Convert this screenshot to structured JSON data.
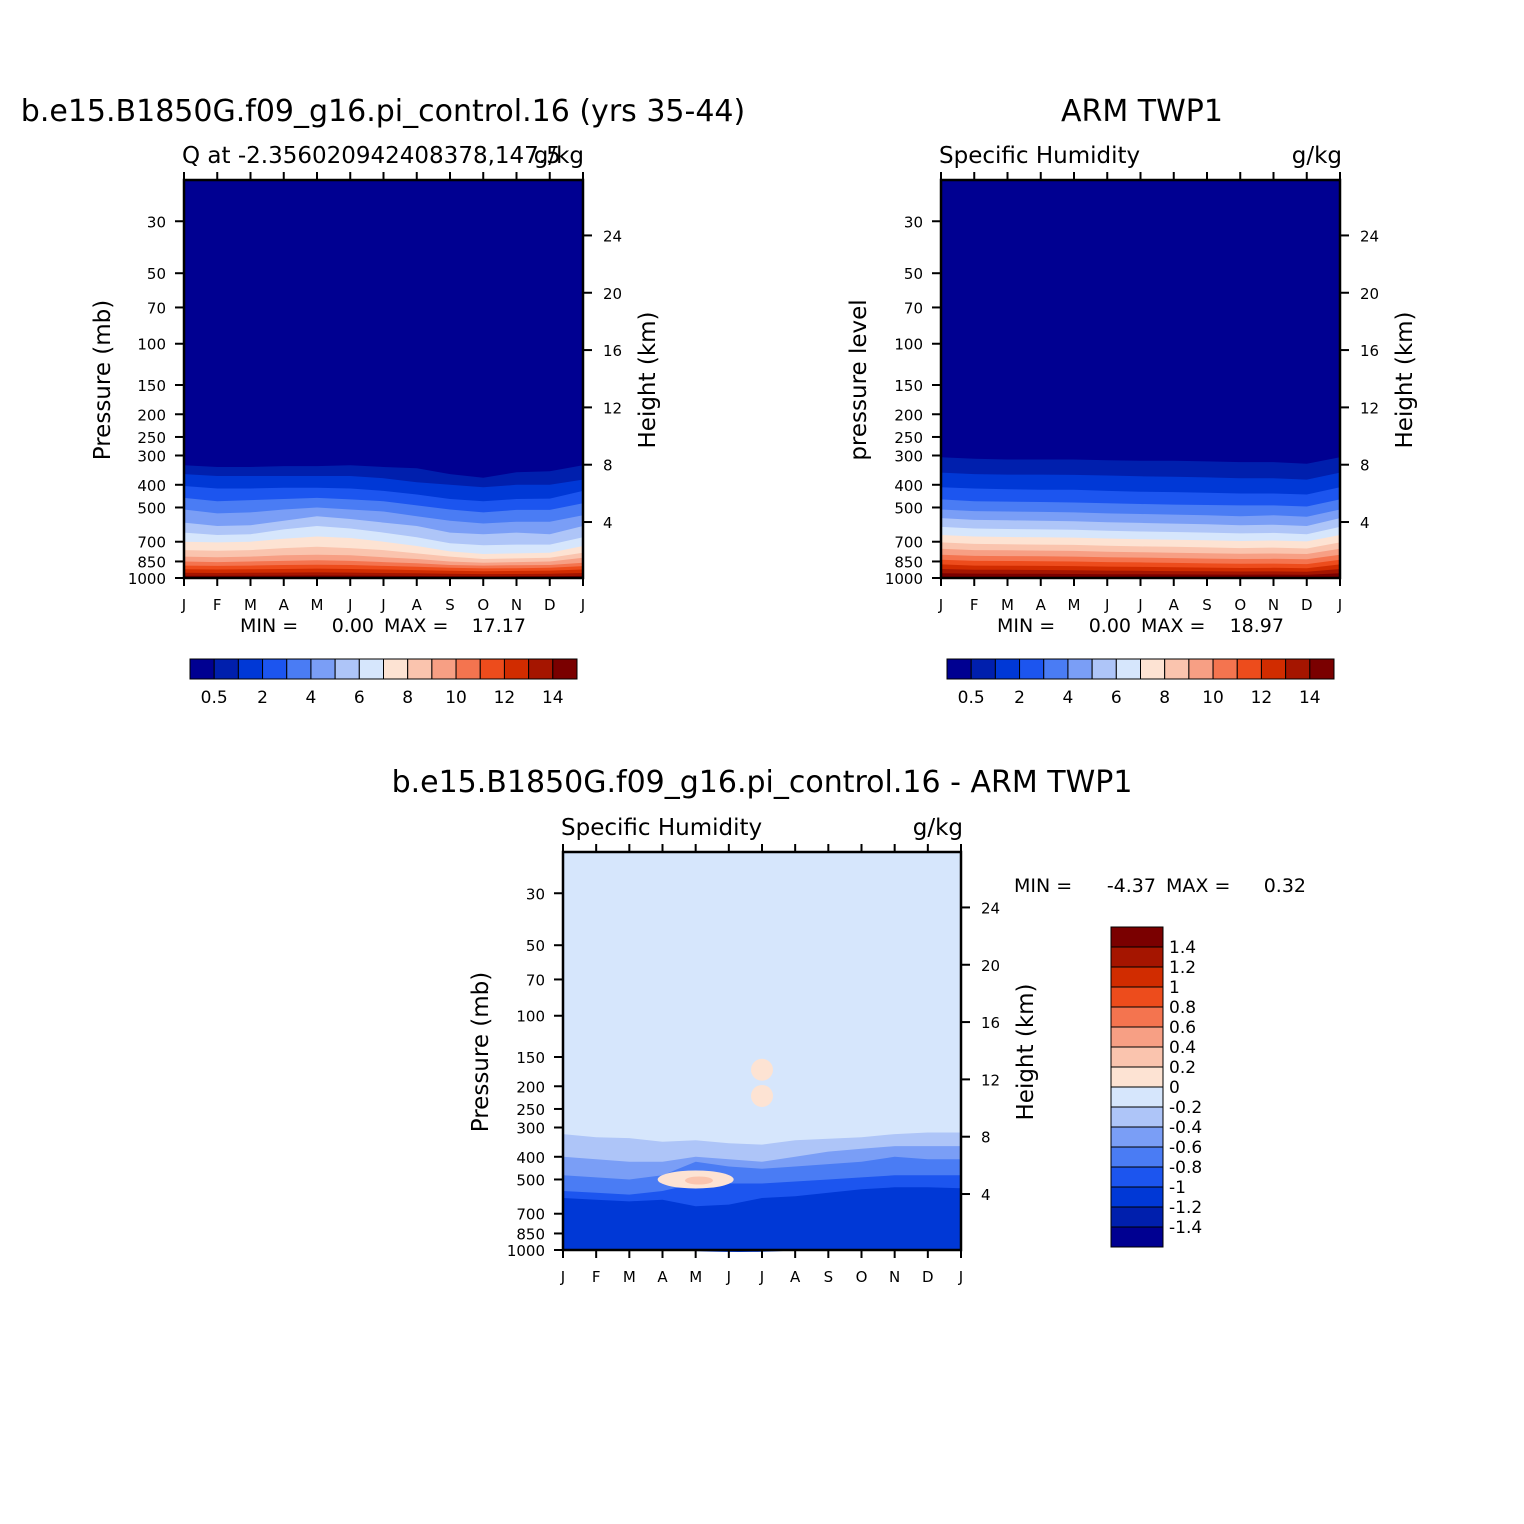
{
  "palette": {
    "abs": [
      "#000091",
      "#001fad",
      "#0038d6",
      "#1c55ef",
      "#4a7cf4",
      "#7a9ef6",
      "#aec5f8",
      "#d6e6fc",
      "#fde3d3",
      "#fac4ae",
      "#f79f84",
      "#f4744f",
      "#ed4c1c",
      "#d12c00",
      "#a51500",
      "#7a0000"
    ],
    "diff": [
      "#000091",
      "#001fad",
      "#0038d6",
      "#1c55ef",
      "#4a7cf4",
      "#7a9ef6",
      "#aec5f8",
      "#d6e6fc",
      "#fde3d3",
      "#fac4ae",
      "#f79f84",
      "#f4744f",
      "#ed4c1c",
      "#d12c00",
      "#a51500",
      "#7a0000"
    ]
  },
  "chart_data": [
    {
      "type": "heatmap",
      "id": "model",
      "title": "b.e15.B1850G.f09_g16.pi_control.16 (yrs 35-44)",
      "left_subtitle": "Q  at -2.356020942408378,147.5",
      "right_subtitle": "g/kg",
      "ylabel": "Pressure (mb)",
      "y2label": "Height (km)",
      "x_ticks": [
        "J",
        "F",
        "M",
        "A",
        "M",
        "J",
        "J",
        "A",
        "S",
        "O",
        "N",
        "D",
        "J"
      ],
      "y_ticks": [
        30,
        50,
        70,
        100,
        150,
        200,
        250,
        300,
        400,
        500,
        700,
        850,
        1000
      ],
      "y2_ticks": [
        24,
        20,
        16,
        12,
        8,
        4
      ],
      "ylim": [
        1000,
        20
      ],
      "min_label": "MIN =",
      "min_value": "0.00",
      "max_label": "MAX =",
      "max_value": "17.17",
      "colorbar_labels": [
        "0.5",
        "2",
        "4",
        "6",
        "8",
        "10",
        "12",
        "14"
      ],
      "iso_pressure": [
        [
          330,
          336,
          336,
          333,
          333,
          330,
          336,
          340,
          360,
          373,
          354,
          350,
          330
        ],
        [
          360,
          367,
          367,
          367,
          367,
          367,
          375,
          390,
          400,
          410,
          400,
          400,
          380
        ],
        [
          405,
          415,
          415,
          412,
          412,
          415,
          425,
          440,
          460,
          470,
          460,
          458,
          425
        ],
        [
          455,
          470,
          465,
          460,
          455,
          462,
          470,
          490,
          510,
          525,
          512,
          512,
          480
        ],
        [
          510,
          530,
          525,
          510,
          500,
          510,
          520,
          545,
          570,
          585,
          575,
          575,
          540
        ],
        [
          580,
          600,
          595,
          570,
          545,
          560,
          580,
          600,
          640,
          650,
          640,
          650,
          600
        ],
        [
          640,
          655,
          650,
          620,
          600,
          615,
          640,
          670,
          710,
          725,
          720,
          720,
          670
        ],
        [
          700,
          705,
          700,
          680,
          665,
          675,
          700,
          730,
          770,
          790,
          785,
          780,
          730
        ],
        [
          760,
          765,
          760,
          745,
          735,
          745,
          760,
          785,
          810,
          830,
          825,
          820,
          780
        ],
        [
          810,
          815,
          810,
          800,
          795,
          800,
          815,
          830,
          850,
          860,
          855,
          850,
          820
        ],
        [
          850,
          855,
          850,
          845,
          840,
          845,
          855,
          865,
          880,
          885,
          882,
          880,
          860
        ],
        [
          885,
          888,
          885,
          880,
          878,
          880,
          888,
          895,
          905,
          910,
          908,
          905,
          890
        ],
        [
          918,
          920,
          918,
          915,
          912,
          915,
          920,
          925,
          932,
          935,
          933,
          930,
          920
        ],
        [
          950,
          952,
          950,
          948,
          946,
          948,
          952,
          955,
          960,
          962,
          961,
          960,
          952
        ],
        [
          978,
          979,
          978,
          977,
          976,
          977,
          979,
          981,
          983,
          984,
          983,
          983,
          980
        ]
      ]
    },
    {
      "type": "heatmap",
      "id": "obs",
      "title": "ARM TWP1",
      "left_subtitle": "Specific Humidity",
      "right_subtitle": "g/kg",
      "ylabel": "pressure level",
      "y2label": "Height (km)",
      "x_ticks": [
        "J",
        "F",
        "M",
        "A",
        "M",
        "J",
        "J",
        "A",
        "S",
        "O",
        "N",
        "D",
        "J"
      ],
      "y_ticks": [
        30,
        50,
        70,
        100,
        150,
        200,
        250,
        300,
        400,
        500,
        700,
        850,
        1000
      ],
      "y2_ticks": [
        24,
        20,
        16,
        12,
        8,
        4
      ],
      "ylim": [
        1000,
        20
      ],
      "min_label": "MIN =",
      "min_value": "0.00",
      "max_label": "MAX =",
      "max_value": "18.97",
      "colorbar_labels": [
        "0.5",
        "2",
        "4",
        "6",
        "8",
        "10",
        "12",
        "14"
      ],
      "iso_pressure": [
        [
          305,
          310,
          312,
          312,
          312,
          314,
          316,
          316,
          318,
          320,
          320,
          325,
          305
        ],
        [
          355,
          360,
          362,
          362,
          363,
          365,
          368,
          370,
          372,
          375,
          375,
          380,
          355
        ],
        [
          410,
          415,
          418,
          420,
          420,
          425,
          428,
          430,
          433,
          436,
          436,
          440,
          410
        ],
        [
          462,
          470,
          472,
          474,
          476,
          480,
          483,
          486,
          488,
          490,
          490,
          495,
          462
        ],
        [
          510,
          518,
          520,
          522,
          525,
          530,
          533,
          536,
          540,
          545,
          540,
          548,
          510
        ],
        [
          555,
          565,
          567,
          570,
          572,
          578,
          582,
          586,
          590,
          595,
          592,
          600,
          555
        ],
        [
          605,
          615,
          618,
          620,
          622,
          628,
          633,
          636,
          640,
          645,
          642,
          650,
          605
        ],
        [
          655,
          665,
          668,
          670,
          672,
          678,
          683,
          686,
          690,
          695,
          692,
          698,
          655
        ],
        [
          705,
          715,
          718,
          720,
          722,
          728,
          733,
          736,
          740,
          745,
          742,
          748,
          705
        ],
        [
          750,
          760,
          762,
          764,
          766,
          772,
          776,
          780,
          784,
          788,
          786,
          790,
          750
        ],
        [
          795,
          805,
          806,
          808,
          810,
          815,
          818,
          822,
          826,
          830,
          828,
          832,
          795
        ],
        [
          835,
          845,
          846,
          848,
          850,
          855,
          858,
          862,
          866,
          870,
          868,
          872,
          835
        ],
        [
          875,
          885,
          886,
          888,
          890,
          894,
          897,
          900,
          903,
          906,
          905,
          908,
          875
        ],
        [
          915,
          922,
          923,
          924,
          926,
          930,
          932,
          934,
          936,
          938,
          937,
          940,
          915
        ],
        [
          955,
          958,
          959,
          960,
          961,
          963,
          964,
          965,
          966,
          967,
          966,
          968,
          955
        ]
      ]
    },
    {
      "type": "heatmap",
      "id": "diff",
      "title": "b.e15.B1850G.f09_g16.pi_control.16 - ARM TWP1",
      "left_subtitle": "Specific Humidity",
      "right_subtitle": "g/kg",
      "ylabel": "Pressure (mb)",
      "y2label": "Height (km)",
      "x_ticks": [
        "J",
        "F",
        "M",
        "A",
        "M",
        "J",
        "J",
        "A",
        "S",
        "O",
        "N",
        "D",
        "J"
      ],
      "y_ticks": [
        30,
        50,
        70,
        100,
        150,
        200,
        250,
        300,
        400,
        500,
        700,
        850,
        1000
      ],
      "y2_ticks": [
        24,
        20,
        16,
        12,
        8,
        4
      ],
      "ylim": [
        1000,
        20
      ],
      "min_label": "MIN =",
      "min_value": "-4.37",
      "max_label": "MAX =",
      "max_value": "0.32",
      "colorbar_labels": [
        "1.4",
        "1.2",
        "1",
        "0.8",
        "0.6",
        "0.4",
        "0.2",
        "0",
        "-0.2",
        "-0.4",
        "-0.6",
        "-0.8",
        "-1",
        "-1.2",
        "-1.4"
      ],
      "upper_level_index": 7,
      "iso_pressure": [
        [
          320,
          330,
          333,
          345,
          340,
          350,
          355,
          340,
          335,
          330,
          320,
          315,
          315
        ],
        [
          400,
          410,
          420,
          420,
          400,
          410,
          420,
          400,
          380,
          370,
          360,
          360,
          360
        ],
        [
          480,
          490,
          500,
          480,
          420,
          440,
          450,
          440,
          430,
          420,
          400,
          410,
          410
        ],
        [
          560,
          570,
          580,
          560,
          520,
          520,
          520,
          510,
          500,
          490,
          480,
          480,
          480
        ],
        [
          600,
          610,
          620,
          610,
          650,
          640,
          600,
          590,
          570,
          550,
          540,
          540,
          545
        ]
      ],
      "features": [
        {
          "x": 4.0,
          "p": 500,
          "level_index": 8
        },
        {
          "x": 6.0,
          "p": 170,
          "level_index": 8
        },
        {
          "x": 6.0,
          "p": 220,
          "level_index": 8
        }
      ]
    }
  ]
}
